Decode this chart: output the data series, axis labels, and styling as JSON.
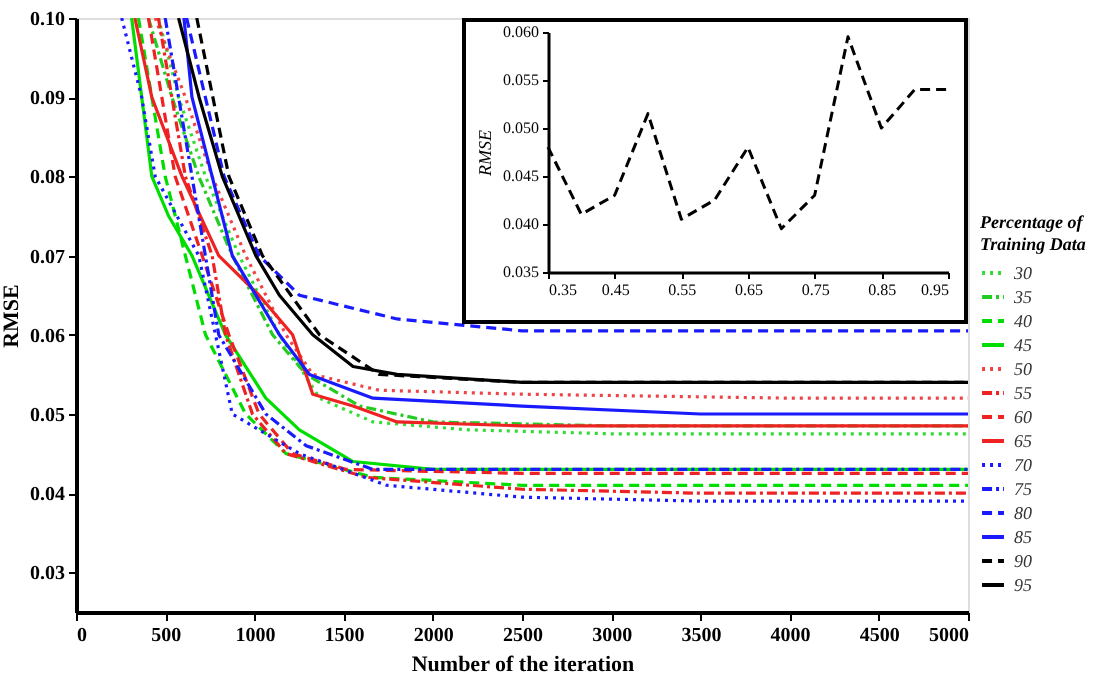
{
  "chart_data": [
    {
      "type": "line",
      "xlabel": "Number of the iteration",
      "ylabel": "RMSE",
      "legend_title": "Percentage of Training Data",
      "legend": "right",
      "xlim": [
        0,
        5000
      ],
      "ylim": [
        0.025,
        0.1
      ],
      "xticks": [
        0,
        500,
        1000,
        1500,
        2000,
        2500,
        3000,
        3500,
        4000,
        4500,
        5000
      ],
      "yticks": [
        0.03,
        0.04,
        0.05,
        0.06,
        0.07,
        0.08,
        0.09,
        {
          "value": 0.1,
          "label": "0.10"
        }
      ],
      "grid": false,
      "series": [
        {
          "name": "30",
          "color": "#33dd33",
          "line_style": "dotted",
          "x": [
            462,
            575,
            726,
            914,
            1140,
            1365,
            1665,
            2200,
            3000,
            5000
          ],
          "values": [
            0.1,
            0.09,
            0.08,
            0.07,
            0.06,
            0.052,
            0.049,
            0.048,
            0.0475,
            0.0475
          ]
        },
        {
          "name": "35",
          "color": "#22cc22",
          "line_style": "dashdot",
          "x": [
            406,
            538,
            688,
            876,
            1102,
            1290,
            1590,
            2000,
            3000,
            5000
          ],
          "values": [
            0.1,
            0.09,
            0.08,
            0.07,
            0.06,
            0.055,
            0.051,
            0.049,
            0.0485,
            0.0485
          ]
        },
        {
          "name": "40",
          "color": "#00dd00",
          "line_style": "dashed",
          "x": [
            350,
            500,
            613,
            726,
            951,
            1177,
            1665,
            2500,
            5000
          ],
          "values": [
            0.1,
            0.08,
            0.07,
            0.06,
            0.05,
            0.045,
            0.042,
            0.041,
            0.041
          ]
        },
        {
          "name": "45",
          "color": "#00dd00",
          "line_style": "solid",
          "x": [
            312,
            425,
            519,
            650,
            838,
            1064,
            1252,
            1553,
            2000,
            5000
          ],
          "values": [
            0.1,
            0.08,
            0.075,
            0.07,
            0.06,
            0.052,
            0.048,
            0.044,
            0.043,
            0.043
          ]
        },
        {
          "name": "50",
          "color": "#ee4444",
          "line_style": "dotted",
          "x": [
            444,
            613,
            763,
            951,
            1177,
            1327,
            1700,
            2500,
            4000,
            5000
          ],
          "values": [
            0.1,
            0.09,
            0.08,
            0.07,
            0.06,
            0.055,
            0.053,
            0.0525,
            0.052,
            0.052
          ]
        },
        {
          "name": "55",
          "color": "#ee2222",
          "line_style": "dashdot",
          "x": [
            462,
            613,
            763,
            838,
            989,
            1177,
            1628,
            2500,
            3500,
            5000
          ],
          "values": [
            0.1,
            0.08,
            0.07,
            0.06,
            0.05,
            0.045,
            0.042,
            0.0405,
            0.04,
            0.04
          ]
        },
        {
          "name": "60",
          "color": "#ee2222",
          "line_style": "dashed",
          "x": [
            406,
            556,
            707,
            857,
            1026,
            1214,
            1515,
            2500,
            5000
          ],
          "values": [
            0.1,
            0.08,
            0.07,
            0.06,
            0.05,
            0.045,
            0.043,
            0.0425,
            0.0425
          ]
        },
        {
          "name": "65",
          "color": "#ee2222",
          "line_style": "solid",
          "x": [
            330,
            425,
            594,
            800,
            1026,
            1214,
            1327,
            1553,
            1800,
            2500,
            5000
          ],
          "values": [
            0.1,
            0.09,
            0.08,
            0.07,
            0.065,
            0.06,
            0.0525,
            0.051,
            0.049,
            0.0485,
            0.0485
          ]
        },
        {
          "name": "70",
          "color": "#1a1aff",
          "line_style": "dotted",
          "x": [
            256,
            368,
            444,
            688,
            876,
            1252,
            1740,
            2500,
            3500,
            5000
          ],
          "values": [
            0.1,
            0.09,
            0.08,
            0.07,
            0.05,
            0.045,
            0.041,
            0.0395,
            0.039,
            0.039
          ]
        },
        {
          "name": "75",
          "color": "#1a1aff",
          "line_style": "dashdot",
          "x": [
            500,
            575,
            650,
            800,
            1064,
            1290,
            1665,
            2500,
            5000
          ],
          "values": [
            0.1,
            0.09,
            0.08,
            0.06,
            0.05,
            0.046,
            0.043,
            0.043,
            0.043
          ]
        },
        {
          "name": "80",
          "color": "#1a1aff",
          "line_style": "dashed",
          "x": [
            620,
            830,
            1026,
            1252,
            1800,
            2500,
            5000
          ],
          "values": [
            0.1,
            0.08,
            0.07,
            0.065,
            0.062,
            0.0605,
            0.0605
          ]
        },
        {
          "name": "85",
          "color": "#1a1aff",
          "line_style": "solid",
          "x": [
            605,
            650,
            763,
            876,
            1140,
            1308,
            1665,
            2500,
            3500,
            5000
          ],
          "values": [
            0.1,
            0.09,
            0.08,
            0.07,
            0.06,
            0.055,
            0.052,
            0.051,
            0.05,
            0.05
          ]
        },
        {
          "name": "90",
          "color": "#000000",
          "line_style": "dashed",
          "x": [
            677,
            857,
            1045,
            1365,
            1700,
            2500,
            5000
          ],
          "values": [
            0.1,
            0.08,
            0.07,
            0.06,
            0.055,
            0.054,
            0.054
          ]
        },
        {
          "name": "95",
          "color": "#000000",
          "line_style": "solid",
          "x": [
            575,
            690,
            820,
            1008,
            1140,
            1327,
            1553,
            1800,
            2500,
            5000
          ],
          "values": [
            0.1,
            0.09,
            0.08,
            0.07,
            0.065,
            0.06,
            0.056,
            0.055,
            0.054,
            0.054
          ]
        }
      ]
    },
    {
      "type": "line",
      "ylabel": "RMSE",
      "xlim": [
        0.35,
        0.95
      ],
      "ylim": [
        0.035,
        0.06
      ],
      "xticks": [
        0.35,
        0.45,
        0.55,
        0.65,
        0.75,
        0.85,
        0.95
      ],
      "yticks": [
        0.035,
        {
          "value": 0.04,
          "label": "0.040"
        },
        0.045,
        {
          "value": 0.05,
          "label": "0.050"
        },
        0.055,
        {
          "value": 0.06,
          "label": "0.060"
        }
      ],
      "grid": false,
      "legend": false,
      "series": [
        {
          "color": "#000000",
          "line_style": "dashed",
          "x": [
            0.35,
            0.4,
            0.45,
            0.5,
            0.55,
            0.6,
            0.65,
            0.7,
            0.75,
            0.8,
            0.85,
            0.9,
            0.95
          ],
          "values": [
            0.048,
            0.041,
            0.043,
            0.0515,
            0.0405,
            0.0425,
            0.048,
            0.0395,
            0.043,
            0.0595,
            0.05,
            0.054,
            0.054
          ]
        }
      ]
    }
  ]
}
